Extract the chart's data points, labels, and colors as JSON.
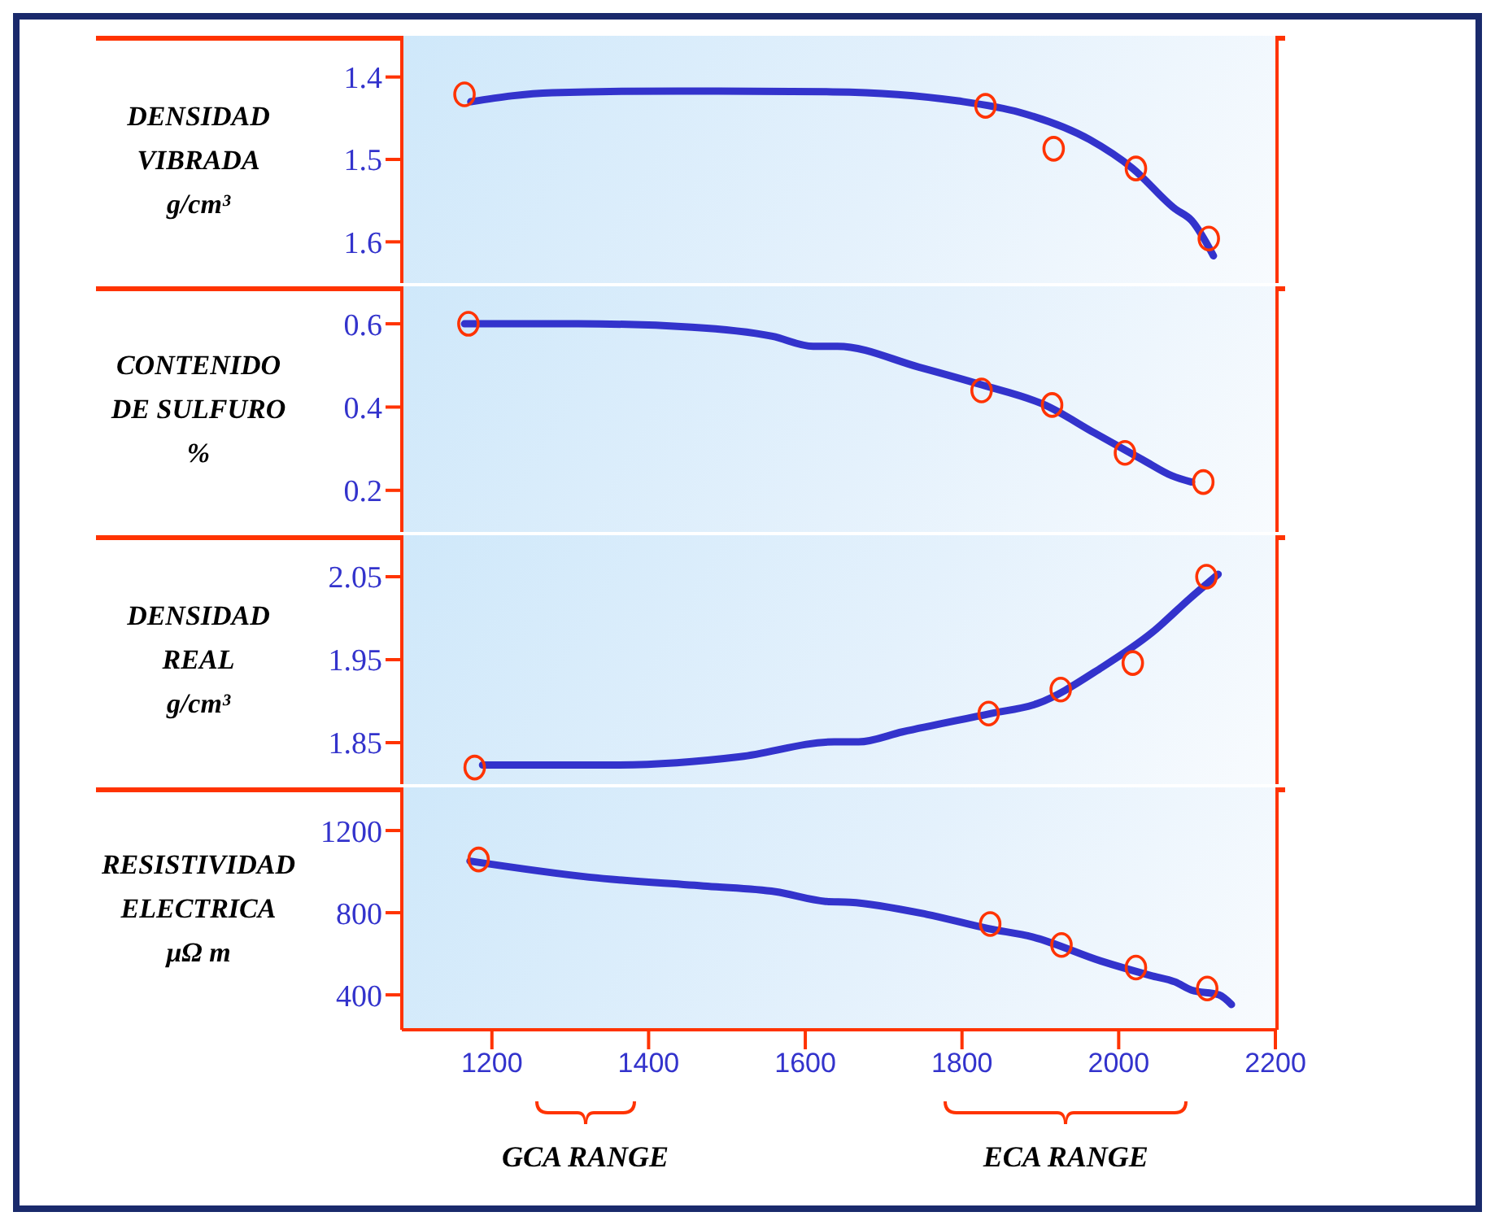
{
  "chart_data": [
    {
      "type": "line",
      "ylabel": "DENSIDAD\nVIBRADA\ng/cm³",
      "xlim": [
        1085,
        2200
      ],
      "ylim": [
        1.65,
        1.35
      ],
      "yticks": [
        1.4,
        1.5,
        1.6
      ],
      "tick_labels": "y",
      "grid": false,
      "legend": false,
      "series": [
        {
          "color": "#3333cc",
          "x": [
            1173,
            1277,
            1437,
            1635,
            1795,
            1874,
            1963,
            2018,
            2072,
            2093,
            2121
          ],
          "values": [
            1.43,
            1.419,
            1.417,
            1.418,
            1.429,
            1.443,
            1.476,
            1.511,
            1.56,
            1.574,
            1.617
          ]
        },
        {
          "type": "scatter",
          "color": "#ff3300",
          "marker": "circle",
          "x": [
            1165,
            1830,
            1917,
            2022,
            2115
          ],
          "values": [
            1.421,
            1.435,
            1.487,
            1.511,
            1.596
          ]
        }
      ]
    },
    {
      "type": "line",
      "ylabel": "CONTENIDO\nDE SULFURO\n%",
      "xlim": [
        1085,
        2200
      ],
      "ylim": [
        0.1,
        0.69
      ],
      "yticks": [
        0.2,
        0.4,
        0.6
      ],
      "tick_labels": "y",
      "grid": false,
      "legend": false,
      "series": [
        {
          "color": "#3333cc",
          "x": [
            1165,
            1310,
            1455,
            1558,
            1610,
            1641,
            1745,
            1824,
            1907,
            1969,
            2031,
            2068,
            2093
          ],
          "values": [
            0.6,
            0.6,
            0.592,
            0.57,
            0.546,
            0.546,
            0.496,
            0.454,
            0.404,
            0.338,
            0.273,
            0.235,
            0.22
          ]
        },
        {
          "type": "scatter",
          "color": "#ff3300",
          "marker": "circle",
          "x": [
            1170,
            1825,
            1915,
            2008,
            2108
          ],
          "values": [
            0.6,
            0.44,
            0.405,
            0.29,
            0.22
          ]
        }
      ]
    },
    {
      "type": "line",
      "ylabel": "DENSIDAD\nREAL\ng/cm³",
      "xlim": [
        1085,
        2200
      ],
      "ylim": [
        1.8,
        2.1
      ],
      "yticks": [
        1.85,
        1.95,
        2.05
      ],
      "tick_labels": "y",
      "grid": false,
      "legend": false,
      "series": [
        {
          "color": "#3333cc",
          "x": [
            1188,
            1358,
            1517,
            1637,
            1668,
            1724,
            1836,
            1896,
            1979,
            2043,
            2091,
            2127
          ],
          "values": [
            1.823,
            1.823,
            1.833,
            1.851,
            1.851,
            1.863,
            1.885,
            1.897,
            1.941,
            1.983,
            2.024,
            2.053
          ]
        },
        {
          "type": "scatter",
          "color": "#ff3300",
          "marker": "circle",
          "x": [
            1178,
            1834,
            1926,
            2018,
            2112
          ],
          "values": [
            1.82,
            1.885,
            1.914,
            1.946,
            2.05
          ]
        }
      ]
    },
    {
      "type": "line",
      "ylabel": "RESISTIVIDAD\nELECTRICA\nμΩ m",
      "xlim": [
        1085,
        2200
      ],
      "xticks": [
        1200,
        1400,
        1600,
        1800,
        2000,
        2200
      ],
      "ylim": [
        230,
        1410
      ],
      "yticks": [
        400,
        800,
        1200
      ],
      "grid": false,
      "legend": false,
      "annotations": [
        "GCA RANGE",
        "ECA RANGE"
      ],
      "series": [
        {
          "color": "#3333cc",
          "x": [
            1172,
            1324,
            1475,
            1562,
            1626,
            1657,
            1755,
            1834,
            1890,
            1977,
            2041,
            2072,
            2093,
            2128,
            2144
          ],
          "values": [
            1051,
            973,
            929,
            902,
            855,
            851,
            792,
            722,
            682,
            565,
            494,
            463,
            423,
            400,
            353
          ]
        },
        {
          "type": "scatter",
          "color": "#ff3300",
          "marker": "circle",
          "x": [
            1183,
            1836,
            1927,
            2022,
            2113
          ],
          "values": [
            1059,
            745,
            643,
            533,
            431
          ]
        }
      ]
    }
  ]
}
